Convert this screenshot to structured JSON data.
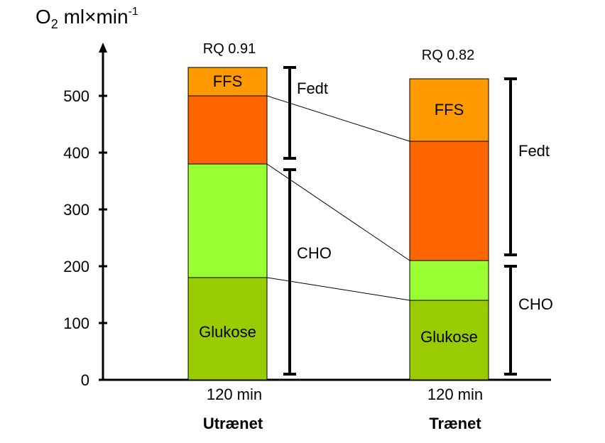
{
  "chart_data": {
    "type": "bar",
    "stacked": true,
    "ylabel": {
      "base": "O",
      "sub": "2",
      "unit": " ml×min",
      "sup": "-1"
    },
    "yticks": [
      0,
      100,
      200,
      300,
      400,
      500
    ],
    "ylim": [
      0,
      550
    ],
    "groups": [
      {
        "time_label": "120 min",
        "group_label": "Utrænet",
        "rq_label": "RQ 0.91",
        "segments": [
          {
            "label": "Glukose",
            "from": 0,
            "to": 180,
            "color": "#99cc00"
          },
          {
            "label": "",
            "from": 180,
            "to": 380,
            "color": "#99ff33"
          },
          {
            "label": "",
            "from": 380,
            "to": 500,
            "color": "#ff6600"
          },
          {
            "label": "FFS",
            "from": 500,
            "to": 550,
            "color": "#ff9900"
          }
        ],
        "brackets": [
          {
            "label": "Fedt",
            "from": 390,
            "to": 550
          },
          {
            "label": "CHO",
            "from": 10,
            "to": 370
          }
        ]
      },
      {
        "time_label": "120 min",
        "group_label": "Trænet",
        "rq_label": "RQ 0.82",
        "segments": [
          {
            "label": "Glukose",
            "from": 0,
            "to": 140,
            "color": "#99cc00"
          },
          {
            "label": "",
            "from": 140,
            "to": 210,
            "color": "#99ff33"
          },
          {
            "label": "",
            "from": 210,
            "to": 420,
            "color": "#ff6600"
          },
          {
            "label": "FFS",
            "from": 420,
            "to": 530,
            "color": "#ff9900"
          }
        ],
        "brackets": [
          {
            "label": "Fedt",
            "from": 220,
            "to": 530
          },
          {
            "label": "CHO",
            "from": 10,
            "to": 200
          }
        ]
      }
    ]
  }
}
